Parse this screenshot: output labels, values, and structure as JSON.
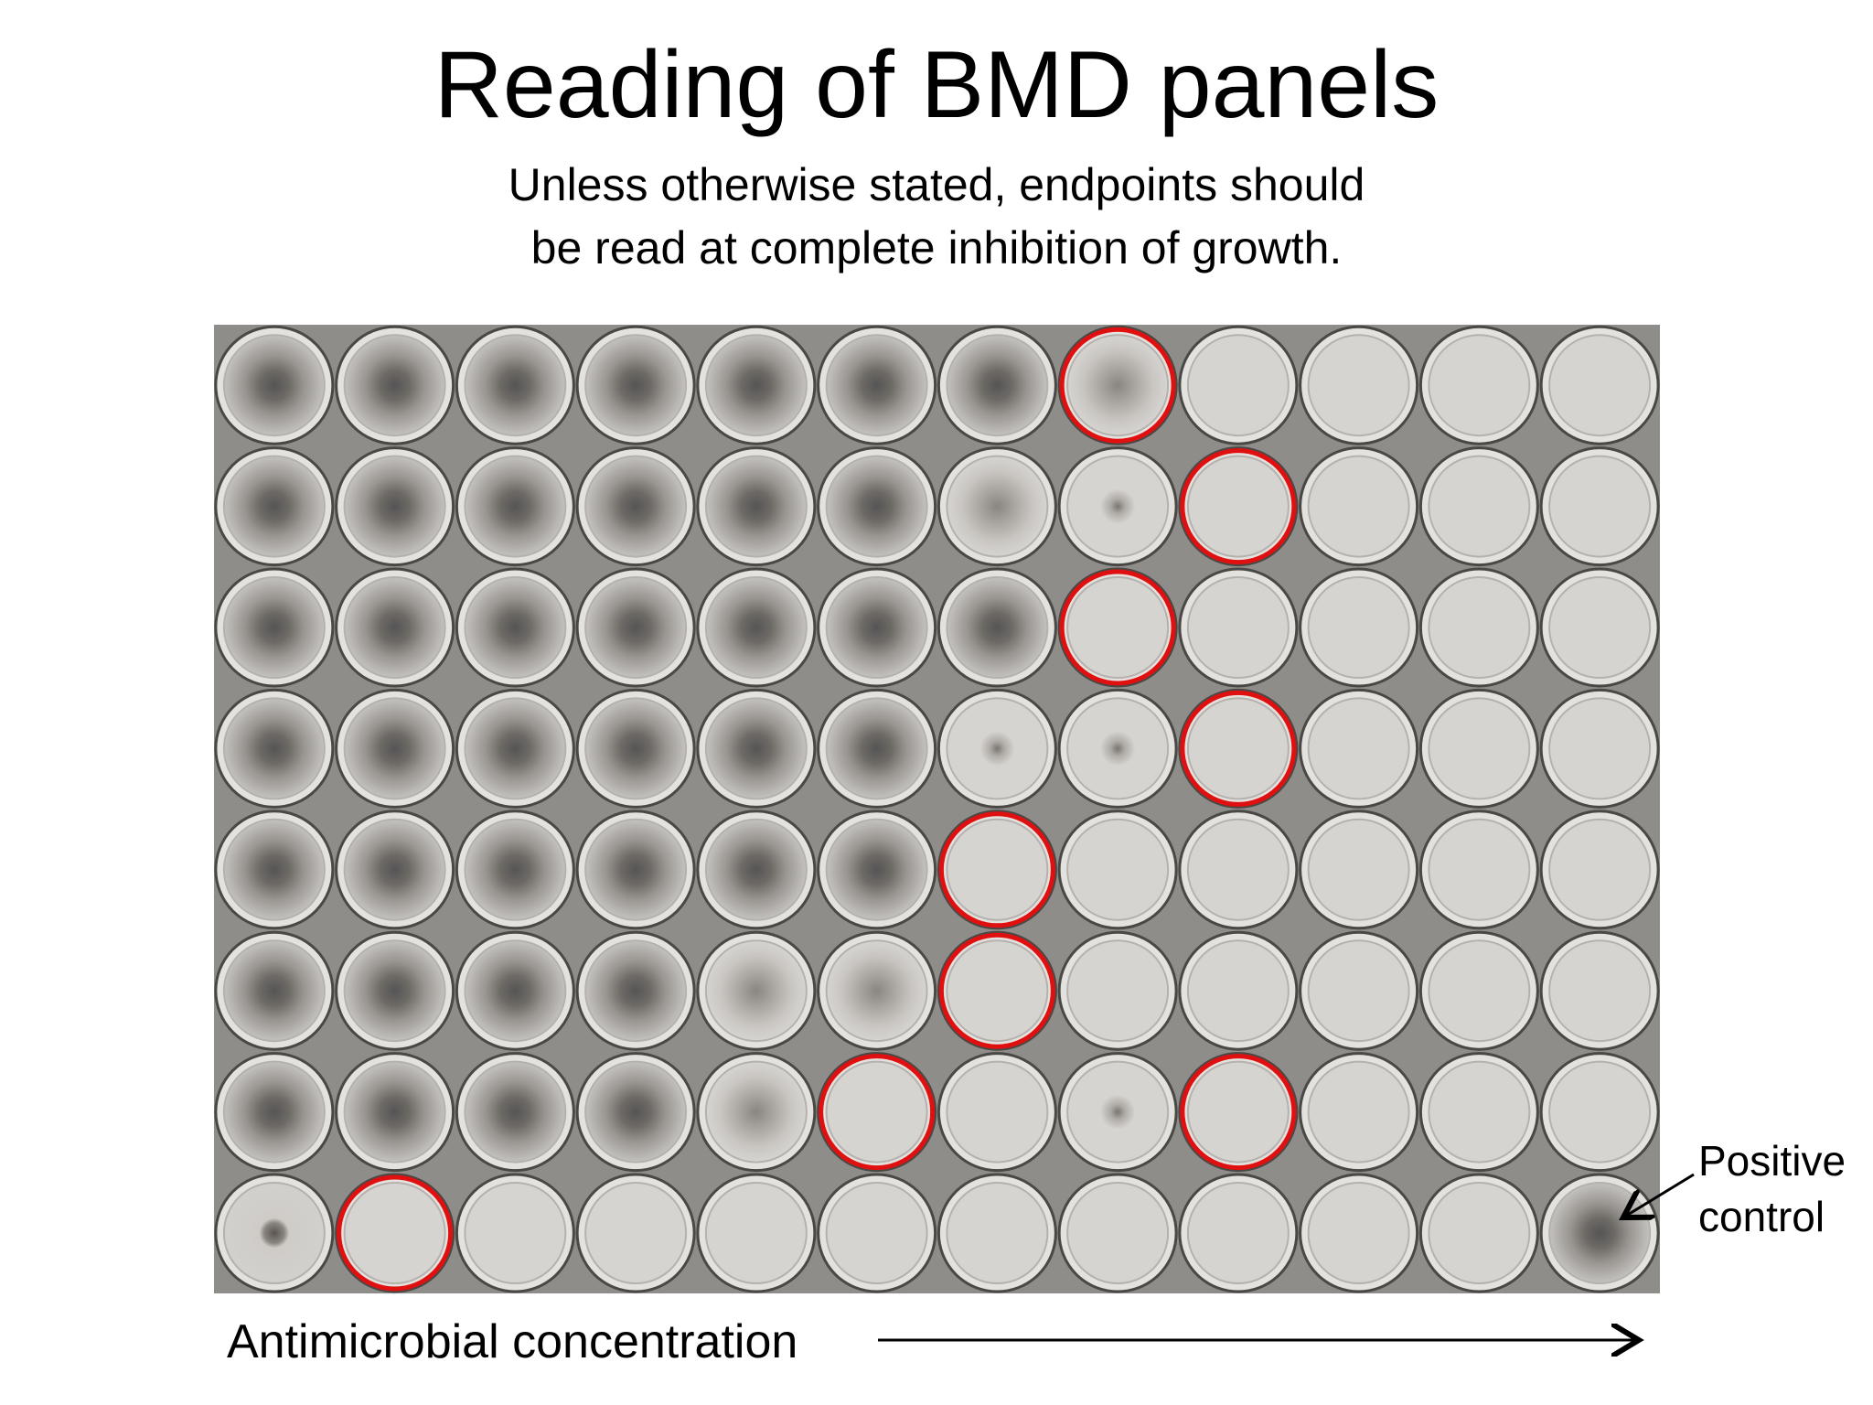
{
  "header": {
    "title": "Reading of BMD panels",
    "subtitle": [
      "Unless otherwise stated, endpoints should",
      "be read at complete inhibition of growth."
    ]
  },
  "figure": {
    "annotation": [
      "Positive",
      "control"
    ],
    "axis_label": "Antimicrobial concentration"
  }
}
